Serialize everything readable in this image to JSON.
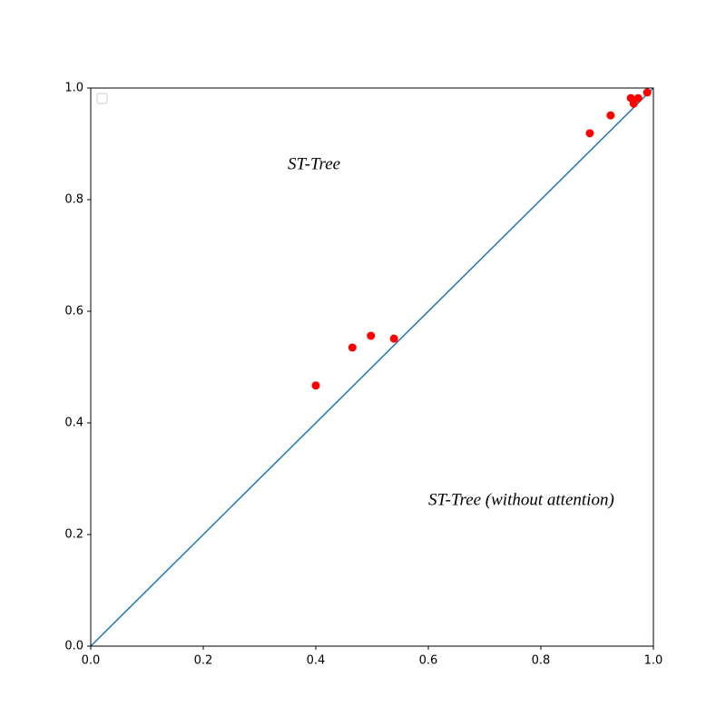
{
  "chart_data": {
    "type": "scatter",
    "annotations": [
      "ST-Tree",
      "ST-Tree (without attention)"
    ],
    "series": [
      {
        "type": "line",
        "color": "#1f77b4",
        "x": [
          0,
          1
        ],
        "values": [
          0,
          1
        ]
      },
      {
        "type": "scatter",
        "color": "#ff0000",
        "x": [
          0.4,
          0.465,
          0.498,
          0.539,
          0.887,
          0.924,
          0.96,
          0.965,
          0.973,
          0.989
        ],
        "values": [
          0.467,
          0.535,
          0.556,
          0.551,
          0.919,
          0.951,
          0.982,
          0.972,
          0.982,
          0.992
        ]
      }
    ],
    "xlim": [
      0,
      1
    ],
    "ylim": [
      0,
      1
    ],
    "xticks": [
      {
        "value": 0,
        "label": "0.0"
      },
      0.2,
      0.4,
      0.6,
      0.8,
      {
        "value": 1,
        "label": "1.0"
      }
    ],
    "yticks": [
      {
        "value": 0,
        "label": "0.0"
      },
      0.2,
      0.4,
      0.6,
      0.8,
      {
        "value": 1,
        "label": "1.0"
      }
    ]
  }
}
